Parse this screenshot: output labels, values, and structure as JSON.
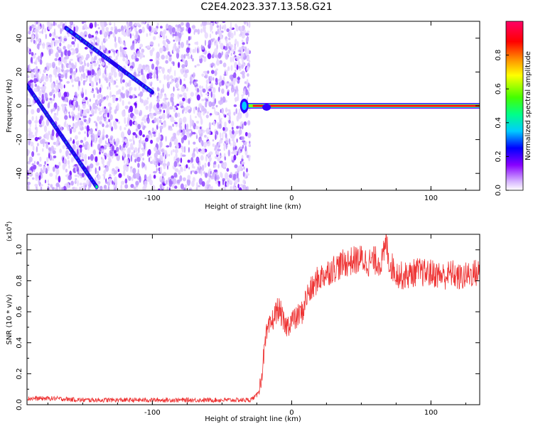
{
  "title": "C2E4.2023.337.13.58.G21",
  "chart_data": [
    {
      "type": "heatmap",
      "xlabel": "Height of straight line (km)",
      "ylabel": "Frequency (Hz)",
      "xlim": [
        -190,
        135
      ],
      "ylim": [
        -50,
        50
      ],
      "x_ticks": [
        -100,
        0,
        100
      ],
      "y_ticks": [
        -40,
        -20,
        0,
        20,
        40
      ],
      "colorbar": {
        "label": "Normalized spectral amplitude",
        "range": [
          0,
          1
        ],
        "ticks": [
          0.0,
          0.2,
          0.4,
          0.6,
          0.8
        ],
        "colors": [
          "#ffffff",
          "#cc99ff",
          "#7700ff",
          "#0000ff",
          "#00ddff",
          "#00ff66",
          "#88ff00",
          "#ffff00",
          "#ff8800",
          "#ff0000",
          "#ff0066"
        ]
      },
      "features": {
        "noise_region_x": [
          -190,
          -33
        ],
        "carrier_line": {
          "x": [
            -33,
            135
          ],
          "frequency": 0
        },
        "diagonal_trace_1": {
          "x": [
            -190,
            -140
          ],
          "frequency": [
            12,
            -48
          ]
        },
        "diagonal_trace_2": {
          "x": [
            -162,
            -100
          ],
          "frequency": [
            46,
            8
          ]
        }
      }
    },
    {
      "type": "line",
      "xlabel": "Height of straight line (km)",
      "ylabel": "SNR (10 * v/v)",
      "y_scale_note": "(x10",
      "y_scale_exp": "4",
      "xlim": [
        -190,
        135
      ],
      "ylim": [
        0,
        1.1
      ],
      "x_ticks": [
        -100,
        0,
        100
      ],
      "y_ticks": [
        0.0,
        0.2,
        0.4,
        0.6,
        0.8,
        1.0
      ],
      "color": "#ee3333",
      "series": [
        {
          "x": [
            -190,
            -170,
            -150,
            -130,
            -110,
            -90,
            -70,
            -50,
            -40,
            -30,
            -25,
            -22,
            -20,
            -18,
            -15,
            -12,
            -10,
            -8,
            -5,
            -2,
            0,
            3,
            5,
            8,
            10,
            12,
            15,
            18,
            20,
            25,
            30,
            35,
            40,
            45,
            50,
            55,
            60,
            65,
            68,
            70,
            75,
            80,
            85,
            90,
            95,
            100,
            105,
            110,
            115,
            120,
            125,
            130,
            135
          ],
          "y": [
            0.04,
            0.04,
            0.03,
            0.03,
            0.03,
            0.03,
            0.03,
            0.03,
            0.03,
            0.03,
            0.06,
            0.15,
            0.32,
            0.45,
            0.52,
            0.58,
            0.62,
            0.6,
            0.5,
            0.52,
            0.55,
            0.55,
            0.58,
            0.6,
            0.68,
            0.72,
            0.75,
            0.8,
            0.82,
            0.85,
            0.88,
            0.9,
            0.92,
            0.93,
            0.94,
            0.92,
            0.93,
            0.92,
            1.05,
            0.92,
            0.85,
            0.83,
            0.84,
            0.86,
            0.85,
            0.85,
            0.84,
            0.83,
            0.85,
            0.82,
            0.83,
            0.85,
            0.85
          ]
        }
      ]
    }
  ]
}
